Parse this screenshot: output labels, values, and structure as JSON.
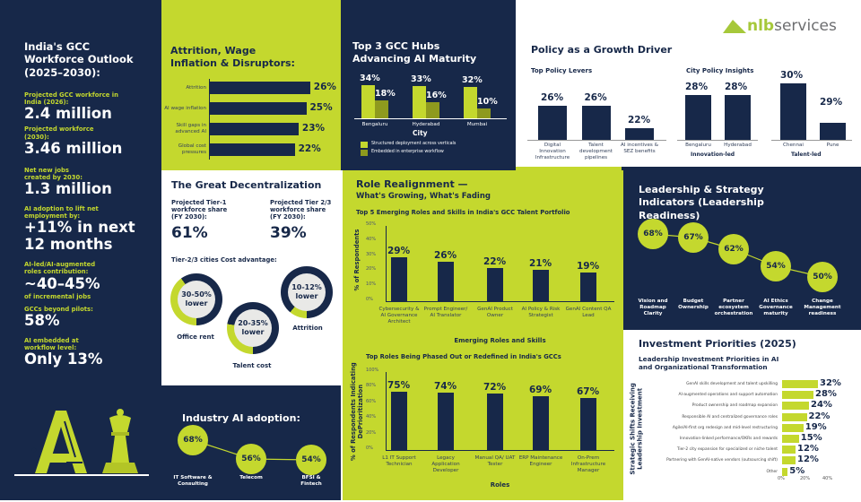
{
  "logo": {
    "brand_a": "nlb",
    "brand_b": "services"
  },
  "colors": {
    "navy": "#172849",
    "lime": "#c4d82e",
    "olive": "#8e9a1e",
    "white": "#ffffff"
  },
  "outlook": {
    "title": "India's GCC Workforce Outlook (2025–2030):",
    "stats": [
      {
        "label": "Projected GCC workforce in India (2026):",
        "value": "2.4 million"
      },
      {
        "label": "Projected workforce (2030):",
        "value": "3.46 million"
      },
      {
        "label": "Net new jobs created by 2030:",
        "value": "1.3 million"
      },
      {
        "label": "AI adoption to lift net employment by:",
        "value": "+11% in next 12 months"
      },
      {
        "label": "AI-led/AI-augmented roles contribution:",
        "value": "~40–45%",
        "note": "of incremental jobs"
      },
      {
        "label": "GCCs beyond pilots:",
        "value": "58%"
      },
      {
        "label": "AI embedded at workflow level:",
        "value": "Only 13%"
      }
    ],
    "illustration_text": "AI"
  },
  "attrition": {
    "title": "Attrition, Wage Inflation & Disruptors:"
  },
  "hubs": {
    "title": "Top 3 GCC Hubs Advancing AI Maturity"
  },
  "policy": {
    "title": "Policy as a Growth Driver",
    "levers_title": "Top Policy Levers",
    "city_title": "City Policy Insights"
  },
  "decentral": {
    "title": "The Great Decentralization",
    "tier1_label": "Projected Tier-1 workforce share (FY 2030):",
    "tier1_value": "61%",
    "tier23_label": "Projected Tier 2/3 workforce share (FY 2030):",
    "tier23_value": "39%",
    "cost_title": "Tier-2/3 cities Cost advantage:",
    "donuts": [
      {
        "value": "30-50% lower",
        "label": "Office rent",
        "fill": 0.4
      },
      {
        "value": "20-35% lower",
        "label": "Talent cost",
        "fill": 0.275
      },
      {
        "value": "10-12% lower",
        "label": "Attrition",
        "fill": 0.11
      }
    ]
  },
  "industry": {
    "title": "Industry AI adoption:"
  },
  "roles": {
    "title": "Role Realignment —",
    "subtitle": "What's Growing, What's Fading"
  },
  "leadership": {
    "title": "Leadership & Strategy Indicators (Leadership Readiness)"
  },
  "investment": {
    "title": "Investment Priorities (2025)",
    "subtitle": "Leadership Investment Priorities in AI and Organizational Transformation"
  },
  "chart_data": [
    {
      "id": "attrition",
      "type": "bar",
      "orientation": "horizontal",
      "categories": [
        "Attrition",
        "AI wage inflation",
        "Skill gaps in advanced AI",
        "Global cost pressures"
      ],
      "values": [
        26,
        25,
        23,
        22
      ],
      "value_labels": [
        "26%",
        "25%",
        "23%",
        "22%"
      ]
    },
    {
      "id": "hubs",
      "type": "bar",
      "orientation": "vertical",
      "xlabel": "City",
      "categories": [
        "Bengaluru",
        "Hyderabad",
        "Mumbai"
      ],
      "series": [
        {
          "name": "Structured deployment across verticals",
          "values": [
            34,
            33,
            32
          ],
          "value_labels": [
            "34%",
            "33%",
            "32%"
          ],
          "color": "#c4d82e"
        },
        {
          "name": "Embedded in enterprise workflow",
          "values": [
            18,
            16,
            10
          ],
          "value_labels": [
            "18%",
            "16%",
            "10%"
          ],
          "color": "#8e9a1e"
        }
      ],
      "legend": "bottom-left"
    },
    {
      "id": "policy_levers",
      "type": "bar",
      "title": "Top Policy Levers",
      "categories": [
        "Digital Innovation Infrastructure",
        "Talent development pipelines",
        "AI incentives & SEZ benefits"
      ],
      "values": [
        26,
        26,
        22
      ],
      "value_labels": [
        "26%",
        "26%",
        "22%"
      ]
    },
    {
      "id": "city_policy",
      "type": "bar",
      "title": "City Policy Insights",
      "categories": [
        "Bengaluru",
        "Hyderabad",
        "Chennai",
        "Pune"
      ],
      "values": [
        28,
        28,
        30,
        29
      ],
      "value_labels": [
        "28%",
        "28%",
        "30%",
        "29%"
      ],
      "groups": [
        "Innovation-led",
        "Talent-led"
      ]
    },
    {
      "id": "emerging",
      "type": "bar",
      "title": "Top 5 Emerging Roles and Skills in India's GCC Talent Portfolio",
      "xlabel": "Emerging Roles and Skills",
      "ylabel": "% of Respondents",
      "ylim": [
        0,
        50
      ],
      "yticks": [
        "0%",
        "10%",
        "20%",
        "30%",
        "40%",
        "50%"
      ],
      "categories": [
        "Cybersecurity & AI Governance Architect",
        "Prompt Engineer/ AI Translator",
        "GenAI Product Owner",
        "AI Policy & Risk Strategist",
        "GenAI Content QA Lead"
      ],
      "values": [
        29,
        26,
        22,
        21,
        19
      ],
      "value_labels": [
        "29%",
        "26%",
        "22%",
        "21%",
        "19%"
      ]
    },
    {
      "id": "phased",
      "type": "bar",
      "title": "Top Roles Being Phased Out or Redefined in India's GCCs",
      "xlabel": "Roles",
      "ylabel": "% of Respondents Indicating DePrioritization",
      "ylim": [
        0,
        100
      ],
      "yticks": [
        "0%",
        "20%",
        "40%",
        "60%",
        "80%",
        "100%"
      ],
      "categories": [
        "L1 IT Support Technician",
        "Legacy Application Developer",
        "Manual QA/ UAT Tester",
        "ERP Maintenance Engineer",
        "On-Prem Infrastructure Manager"
      ],
      "values": [
        75,
        74,
        72,
        69,
        67
      ],
      "value_labels": [
        "75%",
        "74%",
        "72%",
        "69%",
        "67%"
      ]
    },
    {
      "id": "leadership",
      "type": "line",
      "categories": [
        "Vision and Roadmap Clarity",
        "Budget Ownership",
        "Partner ecosystem orchestration",
        "AI Ethics Governance maturity",
        "Change Management readiness"
      ],
      "values": [
        68,
        67,
        62,
        54,
        50
      ],
      "value_labels": [
        "68%",
        "67%",
        "62%",
        "54%",
        "50%"
      ]
    },
    {
      "id": "investment",
      "type": "bar",
      "orientation": "horizontal",
      "ylabel": "Strategic Shifts Receiving Leadership Investment",
      "xlim": [
        0,
        40
      ],
      "xticks": [
        "0%",
        "20%",
        "40%"
      ],
      "categories": [
        "GenAI skills development and talent upskilling",
        "AI-augmented operations and support automation",
        "Product ownership and roadmap expansion",
        "Responsible AI and centralized governance roles",
        "Agile/AI-first org redesign and mid-level restructuring",
        "Innovation-linked performance/OKRs and rewards",
        "Tier-2 city expansion for specialized or niche talent",
        "Partnering with GenAI-native vendors (outsourcing shift)",
        "Other"
      ],
      "values": [
        32,
        28,
        24,
        22,
        19,
        15,
        12,
        12,
        5
      ],
      "value_labels": [
        "32%",
        "28%",
        "24%",
        "22%",
        "19%",
        "15%",
        "12%",
        "12%",
        "5%"
      ]
    },
    {
      "id": "industry",
      "type": "line",
      "categories": [
        "IT Software & Consulting",
        "Telecom",
        "BFSI & Fintech"
      ],
      "values": [
        68,
        56,
        54
      ],
      "value_labels": [
        "68%",
        "56%",
        "54%"
      ]
    }
  ]
}
